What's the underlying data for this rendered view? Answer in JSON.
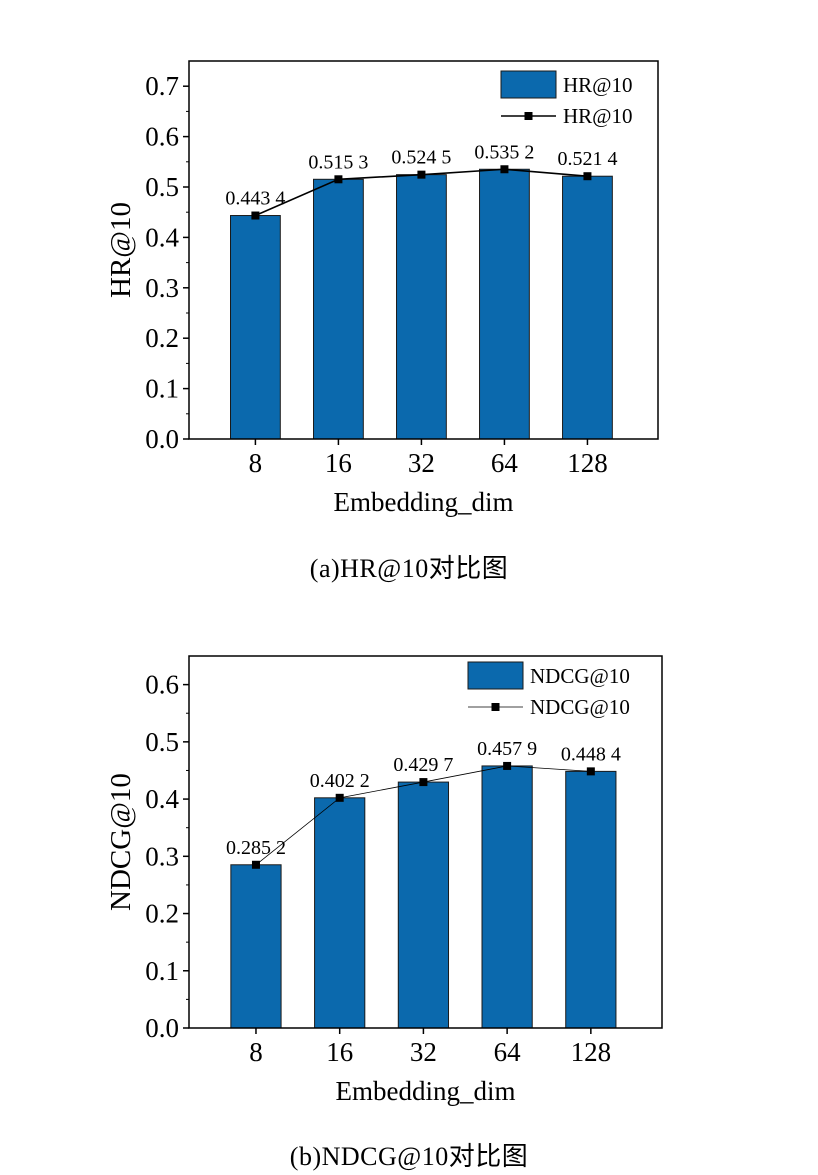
{
  "chart_data": [
    {
      "type": "bar",
      "categories": [
        "8",
        "16",
        "32",
        "64",
        "128"
      ],
      "series": [
        {
          "name": "HR@10",
          "kind": "bar",
          "values": [
            0.4434,
            0.5153,
            0.5245,
            0.5352,
            0.5214
          ]
        },
        {
          "name": "HR@10",
          "kind": "line",
          "values": [
            0.4434,
            0.5153,
            0.5245,
            0.5352,
            0.5214
          ]
        }
      ],
      "data_labels": [
        "0.443 4",
        "0.515 3",
        "0.524 5",
        "0.535 2",
        "0.521 4"
      ],
      "xlabel": "Embedding_dim",
      "ylabel": "HR@10",
      "ylim": [
        0,
        0.75
      ],
      "yticks": [
        "0.0",
        "0.1",
        "0.2",
        "0.3",
        "0.4",
        "0.5",
        "0.6",
        "0.7"
      ],
      "legend": "top-right",
      "grid": false,
      "bar_color": "#0b69ad",
      "line_color": "#000000",
      "caption": "(a)HR@10对比图"
    },
    {
      "type": "bar",
      "categories": [
        "8",
        "16",
        "32",
        "64",
        "128"
      ],
      "series": [
        {
          "name": "NDCG@10",
          "kind": "bar",
          "values": [
            0.2852,
            0.4022,
            0.4297,
            0.4579,
            0.4484
          ]
        },
        {
          "name": "NDCG@10",
          "kind": "line",
          "values": [
            0.2852,
            0.4022,
            0.4297,
            0.4579,
            0.4484
          ]
        }
      ],
      "data_labels": [
        "0.285 2",
        "0.402 2",
        "0.429 7",
        "0.457 9",
        "0.448 4"
      ],
      "xlabel": "Embedding_dim",
      "ylabel": "NDCG@10",
      "ylim": [
        0,
        0.65
      ],
      "yticks": [
        "0.0",
        "0.1",
        "0.2",
        "0.3",
        "0.4",
        "0.5",
        "0.6"
      ],
      "legend": "top-right",
      "grid": false,
      "bar_color": "#0b69ad",
      "line_color": "#000000",
      "caption": "(b)NDCG@10对比图"
    }
  ]
}
